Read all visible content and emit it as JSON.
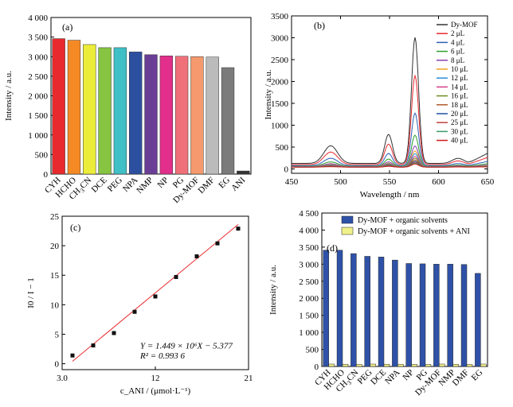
{
  "chart_data": [
    {
      "type": "bar",
      "panel_label": "(a)",
      "ylabel": "Intensity / a.u.",
      "ylim": [
        0,
        4000
      ],
      "yticks": [
        "0",
        "500",
        "1 000",
        "1 500",
        "2 000",
        "2 500",
        "3 000",
        "3 500",
        "4 000"
      ],
      "categories": [
        "CYH",
        "HCHO",
        "CH3CN",
        "DCE",
        "PEG",
        "NPA",
        "NMP",
        "NP",
        "PG",
        "Dy-MOF",
        "DMF",
        "EG",
        "ANI"
      ],
      "values": [
        3460,
        3420,
        3310,
        3230,
        3230,
        3120,
        3050,
        3020,
        3010,
        3000,
        2990,
        2720,
        80
      ],
      "colors": [
        "#e8292d",
        "#f58a25",
        "#ecec3a",
        "#86c441",
        "#3fbfc6",
        "#2d4fa0",
        "#6b3e96",
        "#e22f8c",
        "#f0707a",
        "#f59a6e",
        "#bbbbbb",
        "#7b7b7b",
        "#333333"
      ]
    },
    {
      "type": "line",
      "panel_label": "(b)",
      "xlabel": "Wavelength / nm",
      "ylabel": "Intensity / a.u.",
      "xlim": [
        450,
        650
      ],
      "ylim": [
        -100,
        3500
      ],
      "xticks": [
        "450",
        "500",
        "550",
        "600",
        "650"
      ],
      "yticks": [
        "0",
        "500",
        "1000",
        "1500",
        "2000",
        "2500",
        "3000",
        "3500"
      ],
      "legend_position": "top-right",
      "series": [
        {
          "name": "Dy-MOF",
          "peak": 2880,
          "color": "#333333"
        },
        {
          "name": "2 μL",
          "peak": 2030,
          "color": "#e8292d"
        },
        {
          "name": "4 μL",
          "peak": 1200,
          "color": "#2d5fb8"
        },
        {
          "name": "6 μL",
          "peak": 710,
          "color": "#2ca02c"
        },
        {
          "name": "8 μL",
          "peak": 470,
          "color": "#8a3fb0"
        },
        {
          "name": "10 μL",
          "peak": 360,
          "color": "#f0a020"
        },
        {
          "name": "12 μL",
          "peak": 300,
          "color": "#2b8fd8"
        },
        {
          "name": "14 μL",
          "peak": 240,
          "color": "#d43f8a"
        },
        {
          "name": "16 μL",
          "peak": 200,
          "color": "#6b8e23"
        },
        {
          "name": "18 μL",
          "peak": 160,
          "color": "#b05a2a"
        },
        {
          "name": "20 μL",
          "peak": 130,
          "color": "#1f4fa0"
        },
        {
          "name": "25 μL",
          "peak": 110,
          "color": "#c04040"
        },
        {
          "name": "30 μL",
          "peak": 90,
          "color": "#3a9a6a"
        },
        {
          "name": "40 μL",
          "peak": 70,
          "color": "#d01a1a"
        }
      ]
    },
    {
      "type": "scatter",
      "panel_label": "(c)",
      "xlabel": "c_ANI / (μmol·L⁻¹)",
      "ylabel": "I0 / I − 1",
      "xlim": [
        3,
        21
      ],
      "ylim": [
        -1,
        25
      ],
      "xticks": [
        "3.0",
        "12",
        "21"
      ],
      "yticks": [
        "0",
        "5",
        "10",
        "15",
        "20",
        "25"
      ],
      "x": [
        4,
        6,
        8,
        10,
        12,
        14,
        16,
        18,
        20
      ],
      "y": [
        1.4,
        3.1,
        5.2,
        8.8,
        11.4,
        14.7,
        18.2,
        20.4,
        22.9
      ],
      "fit": {
        "slope": 1.449,
        "intercept": -5.377,
        "x_range": [
          4,
          20
        ],
        "color": "#e8292d"
      },
      "equation": "Y = 1.449 × 10⁶X − 5.377",
      "r2": "R² = 0.993 6"
    },
    {
      "type": "bar",
      "panel_label": "(d)",
      "ylabel": "Intensity / a.u.",
      "ylim": [
        0,
        4500
      ],
      "yticks": [
        "0",
        "500",
        "1 000",
        "1 500",
        "2 000",
        "2 500",
        "3 000",
        "3 500",
        "4 000",
        "4 500"
      ],
      "categories": [
        "CYH",
        "HCHO",
        "CH3CN",
        "PEG",
        "DCE",
        "NPA",
        "NP",
        "PG",
        "Dy-MOF",
        "NMP",
        "DMF",
        "EG"
      ],
      "series": [
        {
          "name": "Dy-MOF + organic solvents",
          "color": "#2f52a8",
          "values": [
            3410,
            3410,
            3310,
            3230,
            3210,
            3120,
            3020,
            3010,
            3000,
            3000,
            2990,
            2730
          ]
        },
        {
          "name": "Dy-MOF + organic solvents + ANI",
          "color": "#f1f18a",
          "values": [
            70,
            65,
            60,
            70,
            65,
            65,
            60,
            60,
            70,
            65,
            60,
            70
          ]
        }
      ],
      "legend_position": "top"
    }
  ]
}
